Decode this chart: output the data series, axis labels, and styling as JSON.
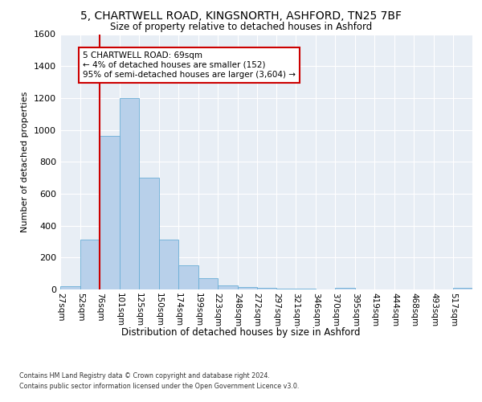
{
  "title1": "5, CHARTWELL ROAD, KINGSNORTH, ASHFORD, TN25 7BF",
  "title2": "Size of property relative to detached houses in Ashford",
  "xlabel": "Distribution of detached houses by size in Ashford",
  "ylabel": "Number of detached properties",
  "bin_labels": [
    "27sqm",
    "52sqm",
    "76sqm",
    "101sqm",
    "125sqm",
    "150sqm",
    "174sqm",
    "199sqm",
    "223sqm",
    "248sqm",
    "272sqm",
    "297sqm",
    "321sqm",
    "346sqm",
    "370sqm",
    "395sqm",
    "419sqm",
    "444sqm",
    "468sqm",
    "493sqm",
    "517sqm"
  ],
  "bin_edges": [
    27,
    52,
    76,
    101,
    125,
    150,
    174,
    199,
    223,
    248,
    272,
    297,
    321,
    346,
    370,
    395,
    419,
    444,
    468,
    493,
    517,
    541
  ],
  "bar_heights": [
    20,
    310,
    960,
    1200,
    700,
    310,
    150,
    70,
    25,
    15,
    10,
    5,
    3,
    2,
    8,
    2,
    2,
    2,
    2,
    2,
    8
  ],
  "bar_color": "#b8d0ea",
  "bar_edge_color": "#6aaed6",
  "annotation_text": "5 CHARTWELL ROAD: 69sqm\n← 4% of detached houses are smaller (152)\n95% of semi-detached houses are larger (3,604) →",
  "vline_x": 76,
  "vline_color": "#cc0000",
  "annotation_box_color": "#ffffff",
  "annotation_box_edge": "#cc0000",
  "ylim": [
    0,
    1600
  ],
  "yticks": [
    0,
    200,
    400,
    600,
    800,
    1000,
    1200,
    1400,
    1600
  ],
  "footer1": "Contains HM Land Registry data © Crown copyright and database right 2024.",
  "footer2": "Contains public sector information licensed under the Open Government Licence v3.0.",
  "bg_color": "#e8eef5",
  "fig_bg_color": "#ffffff"
}
